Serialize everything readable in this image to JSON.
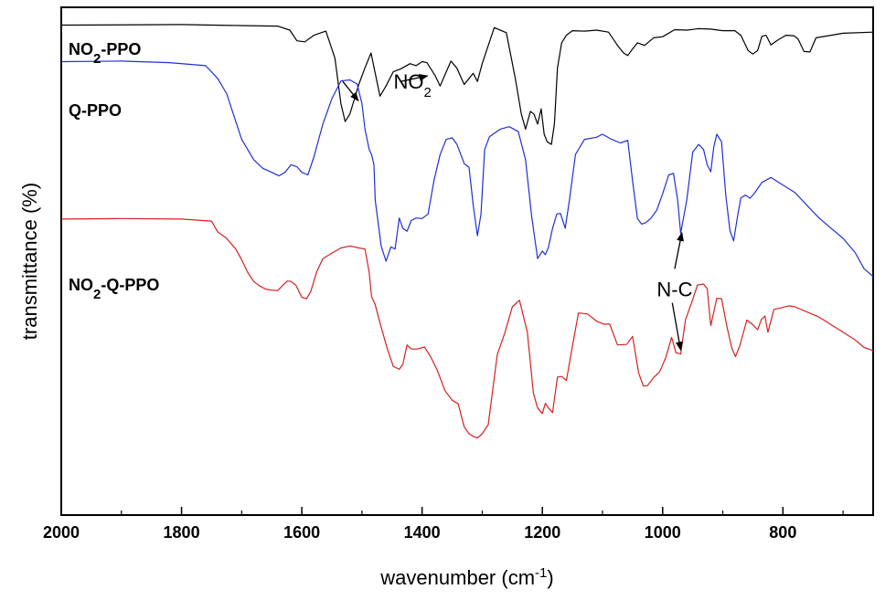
{
  "chart_data": {
    "type": "line",
    "xlabel": "wavenumber (cm",
    "xlabel_sup": "-1",
    "xlabel_end": ")",
    "ylabel": "transmittance (%)",
    "xlim": [
      2000,
      650
    ],
    "x_reversed": true,
    "ylim": [
      0,
      100
    ],
    "grid": false,
    "xticks_major": [
      2000,
      1800,
      1600,
      1400,
      1200,
      1000,
      800
    ],
    "xtick_labels": [
      "2000",
      "1800",
      "1600",
      "1400",
      "1200",
      "1000",
      "800"
    ],
    "xticks_minor": [
      1900,
      1700,
      1500,
      1300,
      1100,
      900,
      700
    ],
    "series": [
      {
        "name_parts": [
          "NO",
          "2",
          "-PPO"
        ],
        "color": "#000000",
        "x": [
          2000,
          1800,
          1700,
          1640,
          1620,
          1608,
          1595,
          1580,
          1560,
          1545,
          1535,
          1528,
          1520,
          1505,
          1495,
          1485,
          1470,
          1460,
          1448,
          1435,
          1420,
          1410,
          1400,
          1392,
          1385,
          1378,
          1370,
          1362,
          1352,
          1342,
          1330,
          1315,
          1308,
          1300,
          1280,
          1260,
          1245,
          1235,
          1228,
          1220,
          1214,
          1208,
          1202,
          1197,
          1192,
          1185,
          1180,
          1175,
          1168,
          1160,
          1150,
          1130,
          1110,
          1090,
          1075,
          1065,
          1058,
          1052,
          1042,
          1030,
          1015,
          1000,
          980,
          960,
          940,
          920,
          900,
          880,
          870,
          858,
          850,
          842,
          835,
          828,
          820,
          808,
          795,
          782,
          775,
          765,
          755,
          745,
          720,
          700,
          650
        ],
        "y": [
          96.5,
          96.6,
          96.4,
          96.3,
          95.5,
          93.4,
          93.2,
          94.5,
          95.3,
          90,
          81,
          77.5,
          79,
          84.9,
          88.1,
          91,
          82.5,
          84.5,
          87.3,
          87.9,
          88.9,
          88.5,
          89.3,
          89.1,
          87.8,
          86.5,
          84.5,
          86.7,
          89.4,
          88,
          84.8,
          87,
          85.4,
          88.9,
          96,
          95,
          86,
          79,
          76,
          79.5,
          79,
          77,
          80,
          75,
          73.5,
          73,
          77,
          88,
          93,
          94.5,
          95.4,
          95.3,
          95.5,
          95.1,
          92.5,
          91,
          90.5,
          91.5,
          93,
          92.5,
          94,
          94.2,
          95.6,
          95.5,
          95.8,
          95.7,
          95.4,
          95.4,
          94.5,
          91.5,
          90.8,
          91.5,
          94.3,
          94.5,
          92.6,
          93.6,
          94.5,
          94.4,
          93.8,
          91.3,
          91.2,
          94,
          94.5,
          94.9,
          95.1
        ]
      },
      {
        "name_parts": [
          "Q-PPO"
        ],
        "color": "#1f2fd6",
        "x": [
          2000,
          1900,
          1820,
          1760,
          1740,
          1725,
          1700,
          1680,
          1665,
          1650,
          1638,
          1628,
          1618,
          1608,
          1600,
          1590,
          1580,
          1565,
          1550,
          1535,
          1520,
          1508,
          1500,
          1495,
          1488,
          1484,
          1480,
          1478,
          1468,
          1460,
          1452,
          1445,
          1438,
          1432,
          1425,
          1418,
          1410,
          1400,
          1390,
          1380,
          1370,
          1360,
          1350,
          1342,
          1330,
          1322,
          1315,
          1308,
          1302,
          1296,
          1288,
          1270,
          1255,
          1240,
          1228,
          1218,
          1208,
          1200,
          1195,
          1190,
          1183,
          1176,
          1170,
          1162,
          1155,
          1145,
          1130,
          1110,
          1100,
          1085,
          1070,
          1058,
          1050,
          1042,
          1035,
          1028,
          1020,
          1010,
          1000,
          990,
          982,
          975,
          970,
          960,
          950,
          940,
          932,
          926,
          920,
          915,
          910,
          902,
          895,
          888,
          882,
          876,
          870,
          862,
          855,
          848,
          835,
          820,
          800,
          780,
          760,
          740,
          720,
          700,
          680,
          665,
          650
        ],
        "y": [
          89.3,
          89.4,
          89.1,
          88.5,
          86,
          83,
          74,
          70,
          68.3,
          67.5,
          66.8,
          67.5,
          69,
          68.6,
          67.5,
          67,
          70.5,
          77,
          82,
          85.5,
          85.7,
          84.9,
          81,
          76,
          72,
          71,
          69,
          62,
          53,
          50,
          52.8,
          52.4,
          58.5,
          56.5,
          55.9,
          58,
          58.5,
          58.4,
          59.3,
          66,
          71,
          74,
          74.3,
          73,
          69.2,
          68.5,
          61,
          55,
          59.3,
          72,
          74.5,
          76,
          76.5,
          75.5,
          70,
          59,
          50.5,
          52,
          51.3,
          52.7,
          56.5,
          59.3,
          59.4,
          56.5,
          62,
          71,
          74,
          74.4,
          75,
          74,
          73.3,
          73.8,
          65.8,
          58.4,
          57.3,
          57.6,
          58.4,
          60,
          63.3,
          67,
          67.3,
          62,
          55.5,
          62,
          71.5,
          73,
          72,
          69,
          67.6,
          72.5,
          75,
          73.5,
          63,
          56,
          54,
          58.4,
          62.5,
          63,
          62.4,
          63.3,
          65.5,
          66.5,
          65,
          63.5,
          61,
          58.5,
          56.5,
          54.5,
          51.7,
          48.5,
          47
        ]
      },
      {
        "name_parts": [
          "NO",
          "2",
          "-Q-PPO"
        ],
        "color": "#d62020",
        "x": [
          2000,
          1900,
          1800,
          1750,
          1740,
          1725,
          1710,
          1700,
          1690,
          1680,
          1670,
          1660,
          1650,
          1640,
          1632,
          1624,
          1618,
          1610,
          1600,
          1592,
          1585,
          1575,
          1565,
          1550,
          1535,
          1520,
          1505,
          1495,
          1488,
          1484,
          1478,
          1468,
          1458,
          1448,
          1438,
          1432,
          1425,
          1418,
          1408,
          1396,
          1385,
          1375,
          1362,
          1350,
          1340,
          1330,
          1322,
          1315,
          1308,
          1300,
          1290,
          1275,
          1262,
          1250,
          1238,
          1225,
          1215,
          1208,
          1200,
          1195,
          1190,
          1183,
          1175,
          1168,
          1160,
          1150,
          1140,
          1125,
          1110,
          1098,
          1088,
          1075,
          1060,
          1050,
          1040,
          1032,
          1025,
          1015,
          1005,
          995,
          985,
          978,
          970,
          962,
          952,
          942,
          932,
          926,
          920,
          915,
          910,
          902,
          893,
          885,
          879,
          872,
          860,
          850,
          842,
          836,
          830,
          825,
          815,
          800,
          790,
          780,
          760,
          740,
          720,
          700,
          680,
          665,
          650
        ],
        "y": [
          58.3,
          58.4,
          58.3,
          57.9,
          55.8,
          54.5,
          52.4,
          50.3,
          47.8,
          46,
          45.1,
          44.5,
          44.3,
          44.2,
          45.2,
          46.1,
          46,
          45.3,
          42.9,
          42.6,
          44.1,
          48,
          50.5,
          51.6,
          52.6,
          53,
          52.6,
          52.4,
          47.8,
          43,
          41.4,
          37,
          32.8,
          29.3,
          28.7,
          29.7,
          33.5,
          32.7,
          32.7,
          33.1,
          31,
          28.6,
          24.5,
          22.6,
          21.9,
          17.4,
          16,
          15.5,
          15.2,
          16,
          17.8,
          31.6,
          36,
          41,
          42.3,
          36,
          24,
          21.1,
          20,
          22,
          21.1,
          20.2,
          27.2,
          27.3,
          26.5,
          33.3,
          39.8,
          39.6,
          38.2,
          37.6,
          37.6,
          33.5,
          33.6,
          35.2,
          28,
          25.4,
          25.5,
          27.1,
          28.2,
          31,
          35,
          32,
          31.7,
          38.5,
          41.8,
          45.3,
          45.5,
          44.6,
          37.3,
          40,
          42.7,
          42.6,
          37,
          32.9,
          31.2,
          33.3,
          38.4,
          37.5,
          36.5,
          38.5,
          39.2,
          36,
          40.5,
          40.9,
          41.2,
          41,
          40,
          39,
          37.5,
          36,
          34.5,
          33,
          32.4
        ]
      }
    ],
    "annotations": [
      {
        "text_parts": [
          "NO",
          "2"
        ],
        "label_x": 1416,
        "label_y": 85.4,
        "arrows": [
          [
            1532,
            85.4,
            1506,
            81.6
          ],
          [
            1435,
            85.4,
            1391,
            86.5
          ]
        ]
      },
      {
        "text_parts": [
          "N-C"
        ],
        "label_x": 980,
        "label_y": 44.5,
        "arrows": [
          [
            980,
            48.5,
            968,
            55.6
          ],
          [
            984,
            41.8,
            970,
            32.5
          ]
        ]
      }
    ]
  }
}
